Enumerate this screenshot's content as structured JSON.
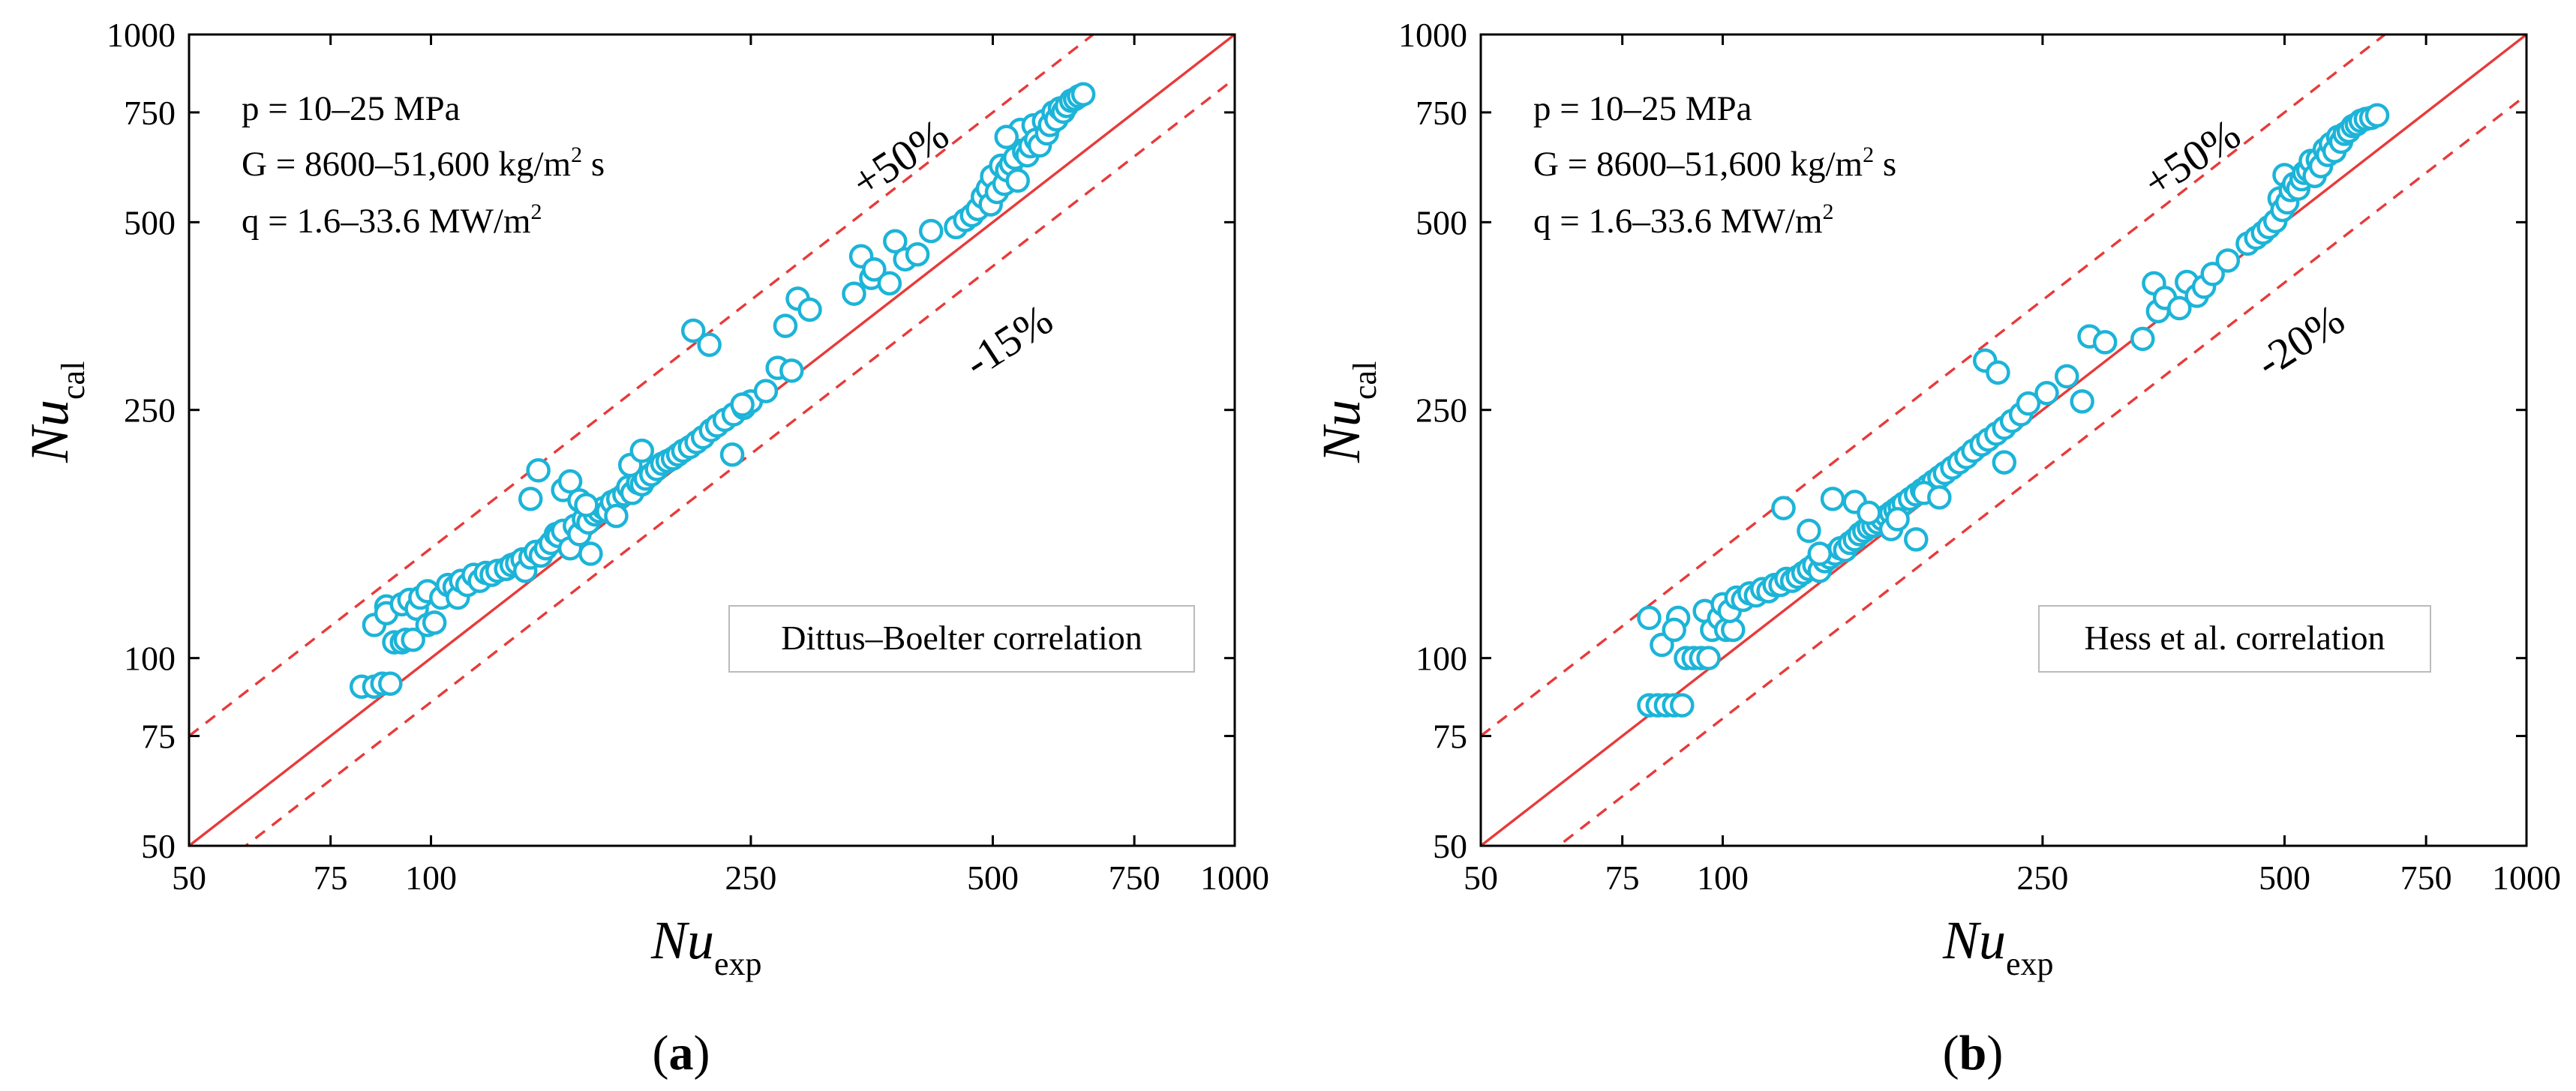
{
  "colors": {
    "point": "#1cb4d8",
    "line": "#e83a3a",
    "frame": "#000000"
  },
  "chart_data": [
    {
      "type": "scatter",
      "panel_label_pre": "(",
      "panel_label": "a",
      "panel_label_post": ")",
      "xscale": "log",
      "yscale": "log",
      "xlim": [
        50,
        1000
      ],
      "ylim": [
        50,
        1000
      ],
      "xticks": [
        "50",
        "75",
        "100",
        "250",
        "500",
        "750",
        "1000"
      ],
      "yticks": [
        "50",
        "75",
        "100",
        "250",
        "500",
        "750",
        "1000"
      ],
      "xlabel_main": "Nu",
      "xlabel_sub": "exp",
      "ylabel_main": "Nu",
      "ylabel_sub": "cal",
      "cond_p": "p = 10–25 MPa",
      "cond_g": "G = 8600–51,600 kg/m",
      "cond_g_sup": "2",
      "cond_g_tail": " s",
      "cond_q": "q = 1.6–33.6 MW/m",
      "cond_q_sup": "2",
      "upper_label": "+50%",
      "lower_label": "-15%",
      "upper_factor": 1.5,
      "lower_factor": 0.85,
      "legend": "Dittus–Boelter correlation",
      "points": [
        [
          82,
          90
        ],
        [
          85,
          90
        ],
        [
          87,
          91
        ],
        [
          89,
          91
        ],
        [
          85,
          113
        ],
        [
          88,
          121
        ],
        [
          88,
          118
        ],
        [
          90,
          106
        ],
        [
          92,
          106
        ],
        [
          93,
          107
        ],
        [
          95,
          107
        ],
        [
          92,
          122
        ],
        [
          94,
          124
        ],
        [
          96,
          120
        ],
        [
          97,
          125
        ],
        [
          99,
          113
        ],
        [
          101,
          114
        ],
        [
          99,
          128
        ],
        [
          103,
          125
        ],
        [
          105,
          131
        ],
        [
          107,
          130
        ],
        [
          108,
          125
        ],
        [
          109,
          133
        ],
        [
          111,
          131
        ],
        [
          113,
          136
        ],
        [
          115,
          133
        ],
        [
          117,
          137
        ],
        [
          119,
          136
        ],
        [
          121,
          138
        ],
        [
          124,
          139
        ],
        [
          126,
          141
        ],
        [
          128,
          142
        ],
        [
          130,
          144
        ],
        [
          131,
          138
        ],
        [
          133,
          145
        ],
        [
          135,
          148
        ],
        [
          137,
          146
        ],
        [
          139,
          150
        ],
        [
          141,
          153
        ],
        [
          143,
          158
        ],
        [
          144,
          157
        ],
        [
          146,
          160
        ],
        [
          149,
          150
        ],
        [
          151,
          163
        ],
        [
          153,
          158
        ],
        [
          155,
          167
        ],
        [
          157,
          165
        ],
        [
          158,
          147
        ],
        [
          160,
          170
        ],
        [
          162,
          172
        ],
        [
          164,
          174
        ],
        [
          166,
          172
        ],
        [
          168,
          178
        ],
        [
          171,
          180
        ],
        [
          174,
          183
        ],
        [
          176,
          188
        ],
        [
          178,
          184
        ],
        [
          181,
          191
        ],
        [
          183,
          190
        ],
        [
          185,
          194
        ],
        [
          188,
          197
        ],
        [
          191,
          201
        ],
        [
          194,
          205
        ],
        [
          197,
          207
        ],
        [
          200,
          209
        ],
        [
          203,
          212
        ],
        [
          206,
          215
        ],
        [
          210,
          218
        ],
        [
          214,
          222
        ],
        [
          218,
          226
        ],
        [
          223,
          232
        ],
        [
          227,
          236
        ],
        [
          232,
          241
        ],
        [
          238,
          246
        ],
        [
          245,
          252
        ],
        [
          250,
          258
        ],
        [
          133,
          180
        ],
        [
          136,
          200
        ],
        [
          146,
          186
        ],
        [
          149,
          192
        ],
        [
          153,
          179
        ],
        [
          156,
          176
        ],
        [
          170,
          169
        ],
        [
          177,
          204
        ],
        [
          183,
          215
        ],
        [
          212,
          335
        ],
        [
          222,
          318
        ],
        [
          237,
          212
        ],
        [
          244,
          255
        ],
        [
          261,
          268
        ],
        [
          270,
          292
        ],
        [
          276,
          341
        ],
        [
          281,
          289
        ],
        [
          286,
          377
        ],
        [
          296,
          362
        ],
        [
          336,
          384
        ],
        [
          343,
          441
        ],
        [
          353,
          407
        ],
        [
          356,
          420
        ],
        [
          372,
          399
        ],
        [
          378,
          466
        ],
        [
          389,
          436
        ],
        [
          403,
          444
        ],
        [
          419,
          484
        ],
        [
          450,
          491
        ],
        [
          462,
          504
        ],
        [
          471,
          513
        ],
        [
          479,
          525
        ],
        [
          486,
          549
        ],
        [
          493,
          566
        ],
        [
          497,
          534
        ],
        [
          499,
          592
        ],
        [
          506,
          559
        ],
        [
          512,
          616
        ],
        [
          517,
          576
        ],
        [
          521,
          606
        ],
        [
          527,
          620
        ],
        [
          533,
          634
        ],
        [
          537,
          583
        ],
        [
          541,
          703
        ],
        [
          547,
          649
        ],
        [
          552,
          640
        ],
        [
          557,
          662
        ],
        [
          562,
          715
        ],
        [
          566,
          678
        ],
        [
          572,
          664
        ],
        [
          579,
          726
        ],
        [
          584,
          694
        ],
        [
          589,
          716
        ],
        [
          595,
          750
        ],
        [
          600,
          731
        ],
        [
          606,
          761
        ],
        [
          612,
          752
        ],
        [
          618,
          768
        ],
        [
          626,
          783
        ],
        [
          633,
          788
        ],
        [
          640,
          796
        ],
        [
          648,
          802
        ],
        [
          520,
          685
        ]
      ]
    },
    {
      "type": "scatter",
      "panel_label_pre": "(",
      "panel_label": "b",
      "panel_label_post": ")",
      "xscale": "log",
      "yscale": "log",
      "xlim": [
        50,
        1000
      ],
      "ylim": [
        50,
        1000
      ],
      "xticks": [
        "50",
        "75",
        "100",
        "250",
        "500",
        "750",
        "1000"
      ],
      "yticks": [
        "50",
        "75",
        "100",
        "250",
        "500",
        "750",
        "1000"
      ],
      "xlabel_main": "Nu",
      "xlabel_sub": "exp",
      "ylabel_main": "Nu",
      "ylabel_sub": "cal",
      "cond_p": "p = 10–25 MPa",
      "cond_g": "G = 8600–51,600 kg/m",
      "cond_g_sup": "2",
      "cond_g_tail": " s",
      "cond_q": "q = 1.6–33.6 MW/m",
      "cond_q_sup": "2",
      "upper_label": "+50%",
      "lower_label": "-20%",
      "upper_factor": 1.5,
      "lower_factor": 0.8,
      "legend": "Hess et al. correlation",
      "points": [
        [
          81,
          84
        ],
        [
          83,
          84
        ],
        [
          85,
          84
        ],
        [
          87,
          84
        ],
        [
          89,
          84
        ],
        [
          81,
          116
        ],
        [
          84,
          105
        ],
        [
          88,
          116
        ],
        [
          87,
          111
        ],
        [
          90,
          100
        ],
        [
          92,
          100
        ],
        [
          94,
          100
        ],
        [
          96,
          100
        ],
        [
          95,
          119
        ],
        [
          97,
          111
        ],
        [
          99,
          116
        ],
        [
          101,
          111
        ],
        [
          103,
          111
        ],
        [
          100,
          122
        ],
        [
          102,
          119
        ],
        [
          104,
          125
        ],
        [
          106,
          124
        ],
        [
          108,
          127
        ],
        [
          110,
          126
        ],
        [
          112,
          129
        ],
        [
          114,
          128
        ],
        [
          116,
          131
        ],
        [
          118,
          131
        ],
        [
          120,
          134
        ],
        [
          122,
          133
        ],
        [
          124,
          135
        ],
        [
          126,
          137
        ],
        [
          128,
          139
        ],
        [
          130,
          141
        ],
        [
          132,
          138
        ],
        [
          134,
          143
        ],
        [
          136,
          145
        ],
        [
          138,
          147
        ],
        [
          140,
          150
        ],
        [
          142,
          149
        ],
        [
          144,
          153
        ],
        [
          146,
          155
        ],
        [
          148,
          158
        ],
        [
          150,
          160
        ],
        [
          152,
          162
        ],
        [
          154,
          163
        ],
        [
          156,
          165
        ],
        [
          158,
          167
        ],
        [
          160,
          169
        ],
        [
          162,
          171
        ],
        [
          164,
          173
        ],
        [
          166,
          175
        ],
        [
          168,
          177
        ],
        [
          171,
          180
        ],
        [
          174,
          183
        ],
        [
          177,
          186
        ],
        [
          180,
          189
        ],
        [
          183,
          192
        ],
        [
          186,
          195
        ],
        [
          189,
          198
        ],
        [
          193,
          202
        ],
        [
          197,
          206
        ],
        [
          201,
          210
        ],
        [
          205,
          215
        ],
        [
          210,
          220
        ],
        [
          214,
          224
        ],
        [
          219,
          229
        ],
        [
          224,
          234
        ],
        [
          229,
          240
        ],
        [
          235,
          246
        ],
        [
          119,
          174
        ],
        [
          128,
          160
        ],
        [
          132,
          147
        ],
        [
          137,
          180
        ],
        [
          146,
          178
        ],
        [
          152,
          171
        ],
        [
          162,
          161
        ],
        [
          165,
          167
        ],
        [
          174,
          155
        ],
        [
          178,
          184
        ],
        [
          186,
          181
        ],
        [
          212,
          300
        ],
        [
          220,
          287
        ],
        [
          224,
          206
        ],
        [
          240,
          256
        ],
        [
          253,
          266
        ],
        [
          268,
          283
        ],
        [
          280,
          258
        ],
        [
          286,
          328
        ],
        [
          299,
          321
        ],
        [
          333,
          325
        ],
        [
          344,
          399
        ],
        [
          348,
          360
        ],
        [
          355,
          378
        ],
        [
          370,
          364
        ],
        [
          378,
          401
        ],
        [
          389,
          381
        ],
        [
          397,
          394
        ],
        [
          407,
          413
        ],
        [
          425,
          434
        ],
        [
          450,
          462
        ],
        [
          461,
          472
        ],
        [
          470,
          481
        ],
        [
          478,
          491
        ],
        [
          487,
          502
        ],
        [
          493,
          546
        ],
        [
          497,
          523
        ],
        [
          500,
          595
        ],
        [
          504,
          538
        ],
        [
          509,
          563
        ],
        [
          514,
          576
        ],
        [
          520,
          566
        ],
        [
          525,
          586
        ],
        [
          529,
          600
        ],
        [
          535,
          606
        ],
        [
          539,
          627
        ],
        [
          545,
          593
        ],
        [
          550,
          630
        ],
        [
          555,
          615
        ],
        [
          561,
          654
        ],
        [
          566,
          641
        ],
        [
          571,
          668
        ],
        [
          577,
          650
        ],
        [
          583,
          685
        ],
        [
          588,
          673
        ],
        [
          594,
          693
        ],
        [
          601,
          700
        ],
        [
          608,
          713
        ],
        [
          615,
          718
        ],
        [
          622,
          727
        ],
        [
          631,
          732
        ],
        [
          641,
          735
        ],
        [
          652,
          742
        ]
      ]
    }
  ]
}
